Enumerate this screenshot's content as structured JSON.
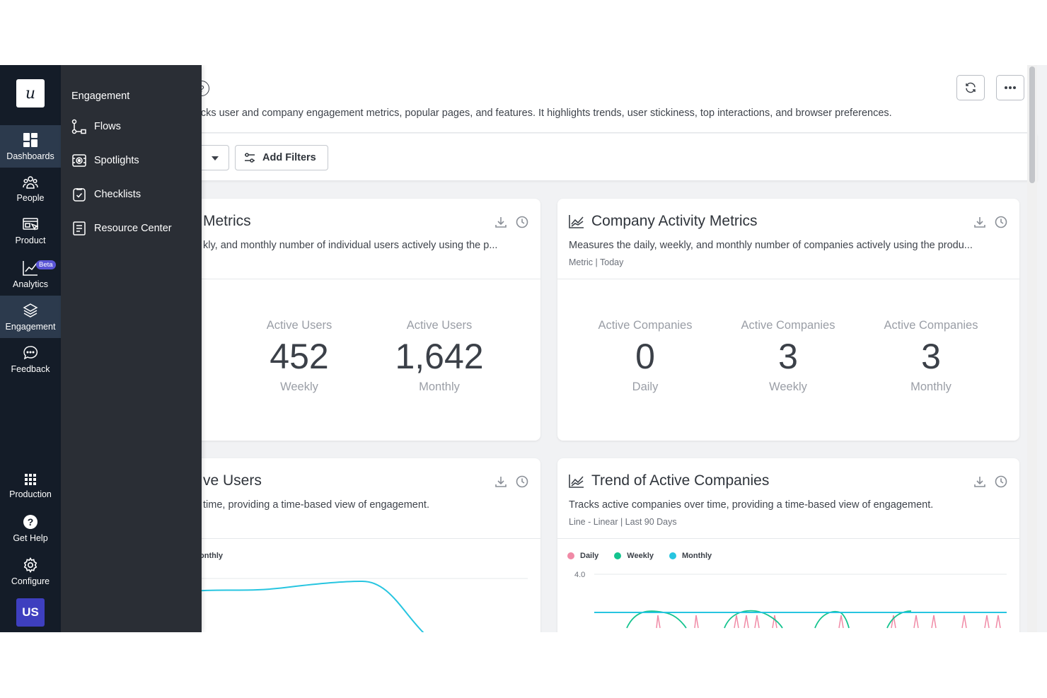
{
  "header": {
    "description": "rd tracks user and company engagement metrics, popular pages, and features. It highlights trends, user stickiness, top interactions, and browser preferences."
  },
  "filters": {
    "add_filters_label": "Add Filters"
  },
  "cards": {
    "user_activity": {
      "title": "Metrics",
      "description": "kly, and monthly number of individual users actively using the p...",
      "metrics": [
        {
          "label": "Active Users",
          "value": "452",
          "period": "Weekly"
        },
        {
          "label": "Active Users",
          "value": "1,642",
          "period": "Monthly"
        }
      ]
    },
    "company_activity": {
      "title": "Company Activity Metrics",
      "description": "Measures the daily, weekly, and monthly number of companies actively using the produ...",
      "meta": "Metric | Today",
      "metrics": [
        {
          "label": "Active Companies",
          "value": "0",
          "period": "Daily"
        },
        {
          "label": "Active Companies",
          "value": "3",
          "period": "Weekly"
        },
        {
          "label": "Active Companies",
          "value": "3",
          "period": "Monthly"
        }
      ]
    },
    "trend_users": {
      "title": "ve Users",
      "description": "time, providing a time-based view of engagement.",
      "legend_partial": "onthly"
    },
    "trend_companies": {
      "title": "Trend of Active Companies",
      "description": "Tracks active companies over time, providing a time-based view of engagement.",
      "meta": "Line - Linear | Last 90 Days",
      "legend": [
        {
          "label": "Daily",
          "color": "#f08aa6"
        },
        {
          "label": "Weekly",
          "color": "#14c38e"
        },
        {
          "label": "Monthly",
          "color": "#27c5e0"
        }
      ],
      "y_tick": "4.0"
    }
  },
  "rail": {
    "items": [
      {
        "label": "Dashboards",
        "icon": "dashboard-icon",
        "active": true
      },
      {
        "label": "People",
        "icon": "people-icon"
      },
      {
        "label": "Product",
        "icon": "product-icon"
      },
      {
        "label": "Analytics",
        "icon": "analytics-icon",
        "badge": "Beta"
      },
      {
        "label": "Engagement",
        "icon": "layers-icon",
        "active": true
      },
      {
        "label": "Feedback",
        "icon": "chat-icon"
      }
    ],
    "bottom": [
      {
        "label": "Production",
        "icon": "grid-icon"
      },
      {
        "label": "Get Help",
        "icon": "help-icon"
      },
      {
        "label": "Configure",
        "icon": "gear-icon"
      }
    ],
    "avatar": "US"
  },
  "flyout": {
    "title": "Engagement",
    "items": [
      {
        "label": "Flows",
        "icon": "flows-icon"
      },
      {
        "label": "Spotlights",
        "icon": "spotlight-icon"
      },
      {
        "label": "Checklists",
        "icon": "checklist-icon"
      },
      {
        "label": "Resource Center",
        "icon": "resource-center-icon"
      }
    ]
  }
}
